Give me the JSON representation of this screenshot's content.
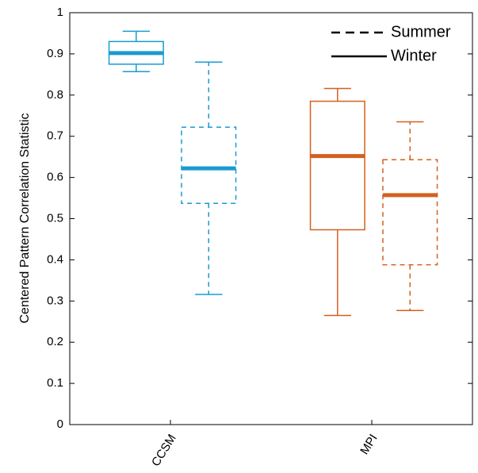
{
  "chart_data": {
    "type": "box",
    "ylabel": "Centered Pattern Correlation Statistic",
    "categories": [
      "CCSM",
      "MPI"
    ],
    "colors": [
      "#1a9bd0",
      "#d3601f"
    ],
    "ylim": [
      0,
      1
    ],
    "yticks": [
      0,
      0.1,
      0.2,
      0.3,
      0.4,
      0.5,
      0.6,
      0.7,
      0.8,
      0.9,
      1
    ],
    "legend": "top-right",
    "series": [
      {
        "name": "Summer",
        "dashed": true,
        "boxes": [
          {
            "min": 0.316,
            "q1": 0.537,
            "median": 0.622,
            "q3": 0.722,
            "max": 0.88
          },
          {
            "min": 0.277,
            "q1": 0.388,
            "median": 0.557,
            "q3": 0.643,
            "max": 0.735
          }
        ]
      },
      {
        "name": "Winter",
        "dashed": false,
        "boxes": [
          {
            "min": 0.857,
            "q1": 0.875,
            "median": 0.902,
            "q3": 0.93,
            "max": 0.955
          },
          {
            "min": 0.265,
            "q1": 0.473,
            "median": 0.652,
            "q3": 0.785,
            "max": 0.816
          }
        ]
      }
    ]
  }
}
